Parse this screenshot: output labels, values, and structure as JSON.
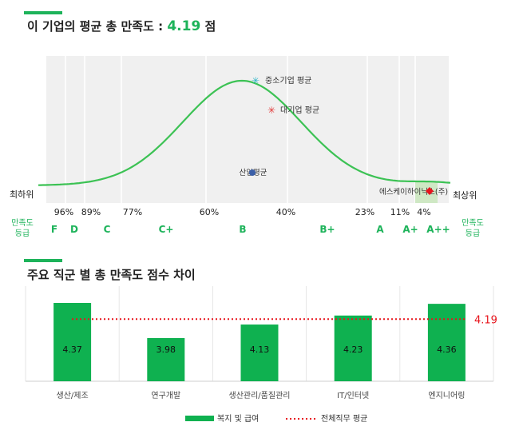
{
  "section1": {
    "title_prefix": "이 기업의 평균 총 만족도 : ",
    "score": "4.19",
    "title_suffix": " 점"
  },
  "section2": {
    "title": "주요 직군 별 총 만족도 점수 차이"
  },
  "colors": {
    "accent": "#1db35a",
    "bar": "#0fb150",
    "avg_line": "#e8141c",
    "curve": "#3cc254",
    "sme_marker": "#2bb5c8",
    "large_marker": "#e23a3a",
    "industry_marker": "#3b5fa8",
    "company_marker": "#e8141c"
  },
  "distribution_chart": {
    "left_end_label": "최하위",
    "right_end_label": "최상위",
    "axis_title_left": [
      "만족도",
      "등급"
    ],
    "axis_title_right": [
      "만족도",
      "등급"
    ],
    "percentiles": [
      "96%",
      "89%",
      "77%",
      "60%",
      "40%",
      "23%",
      "11%",
      "4%"
    ],
    "grades": [
      "F",
      "D",
      "C",
      "C+",
      "B",
      "B+",
      "A",
      "A+",
      "A++"
    ],
    "markers": {
      "sme": "중소기업 평균",
      "large": "대기업 평균",
      "industry": "산업평균",
      "company": "에스케이하이닉스(주)"
    }
  },
  "chart_data": {
    "type": "bar",
    "title": "주요 직군 별 총 만족도 점수 차이",
    "categories": [
      "생산/제조",
      "연구개발",
      "생산관리/품질관리",
      "IT/인터넷",
      "엔지니어링"
    ],
    "series": [
      {
        "name": "복지 및 급여",
        "values": [
          4.37,
          3.98,
          4.13,
          4.23,
          4.36
        ]
      }
    ],
    "reference_line": {
      "name": "전체직무 평균",
      "value": 4.19,
      "label": "4.19"
    },
    "ylim": [
      3.5,
      4.45
    ],
    "legend": [
      "복지 및 급여",
      "전체직무 평균"
    ],
    "legend_position": "bottom",
    "xlabel": "",
    "ylabel": ""
  }
}
